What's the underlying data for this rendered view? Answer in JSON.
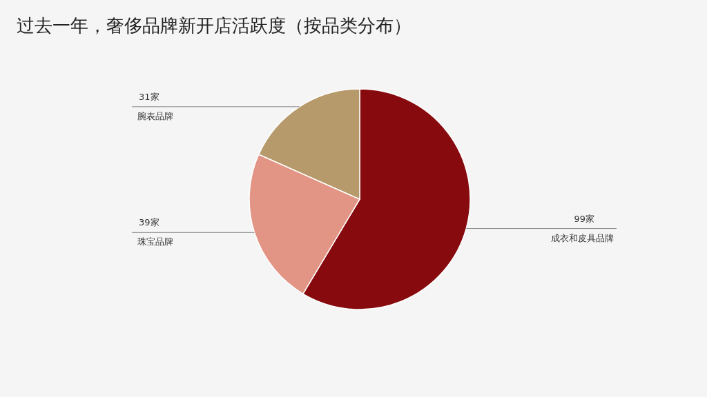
{
  "chart_data": {
    "type": "pie",
    "title": "过去一年，奢侈品牌新开店活跃度（按品类分布）",
    "categories": [
      "成衣和皮具品牌",
      "珠宝品牌",
      "腕表品牌"
    ],
    "values": [
      99,
      39,
      31
    ],
    "value_labels": [
      "99家",
      "39家",
      "31家"
    ],
    "colors": [
      "#870b0e",
      "#e29585",
      "#b79a6b"
    ],
    "legend": false
  }
}
